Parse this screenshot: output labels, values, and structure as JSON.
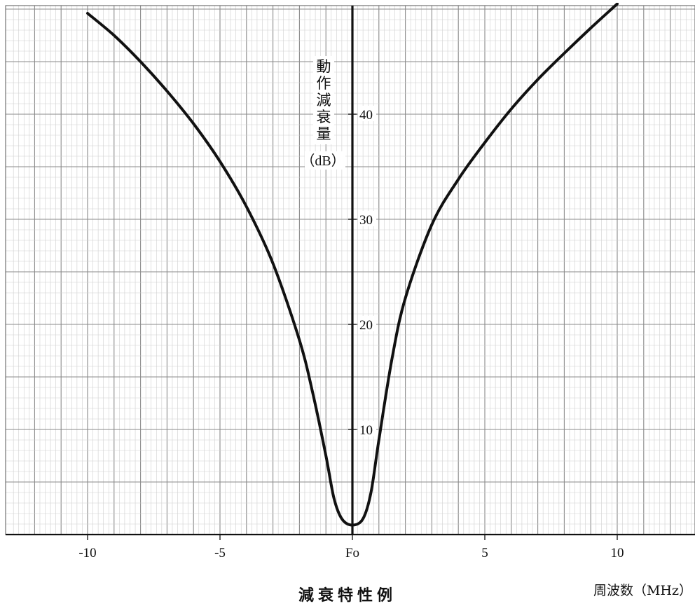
{
  "chart_data": {
    "type": "line",
    "caption": "減衰特性例",
    "xlabel": "周波数（MHz）",
    "ylabel_chars": [
      "動",
      "作",
      "減",
      "衰",
      "量"
    ],
    "ylabel_unit": "（dB）",
    "xlim": [
      -12.8,
      12.8
    ],
    "ylim": [
      0,
      50
    ],
    "x_ticks": [
      {
        "value": -10,
        "label": "-10"
      },
      {
        "value": -5,
        "label": "-5"
      },
      {
        "value": 0,
        "label": "Fo"
      },
      {
        "value": 5,
        "label": "5"
      },
      {
        "value": 10,
        "label": "10"
      }
    ],
    "y_ticks": [
      {
        "value": 10,
        "label": "10"
      },
      {
        "value": 20,
        "label": "20"
      },
      {
        "value": 30,
        "label": "30"
      },
      {
        "value": 40,
        "label": "40"
      }
    ],
    "grid": true,
    "series": [
      {
        "points": [
          [
            -10,
            49.6
          ],
          [
            -9,
            47.5
          ],
          [
            -8,
            45.0
          ],
          [
            -7,
            42.2
          ],
          [
            -6,
            39.1
          ],
          [
            -5,
            35.5
          ],
          [
            -4,
            31.2
          ],
          [
            -3,
            25.8
          ],
          [
            -2,
            18.5
          ],
          [
            -1.5,
            13.5
          ],
          [
            -1,
            7.5
          ],
          [
            -0.7,
            3.5
          ],
          [
            -0.4,
            1.5
          ],
          [
            0,
            0.9
          ],
          [
            0.4,
            1.5
          ],
          [
            0.7,
            4.0
          ],
          [
            1,
            9.0
          ],
          [
            1.5,
            16.8
          ],
          [
            2,
            22.5
          ],
          [
            3,
            29.5
          ],
          [
            4,
            33.8
          ],
          [
            5,
            37.3
          ],
          [
            6,
            40.5
          ],
          [
            7,
            43.3
          ],
          [
            8,
            45.8
          ],
          [
            9,
            48.2
          ],
          [
            10,
            50.5
          ]
        ]
      }
    ]
  }
}
